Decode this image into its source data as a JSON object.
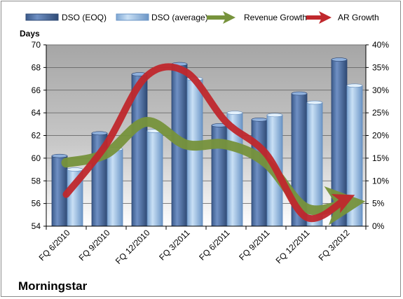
{
  "chart_data": {
    "type": "bar",
    "categories": [
      "FQ 6/2010",
      "FQ 9/2010",
      "FQ 12/2010",
      "FQ 3/2011",
      "FQ 6/2011",
      "FQ 9/2011",
      "FQ 12/2011",
      "FQ 3/2012"
    ],
    "series": [
      {
        "name": "DSO (EOQ)",
        "type": "bar",
        "axis": "left",
        "color": "#4a6fa5",
        "values": [
          60.2,
          62.2,
          67.4,
          68.3,
          62.9,
          63.4,
          65.7,
          68.7
        ]
      },
      {
        "name": "DSO (average)",
        "type": "bar",
        "axis": "left",
        "color": "#9cc3e6",
        "values": [
          59.0,
          60.8,
          62.4,
          67.0,
          64.0,
          63.8,
          64.9,
          66.4
        ]
      },
      {
        "name": "Revenue Growth",
        "type": "line",
        "axis": "right",
        "color": "#77933c",
        "values": [
          0.14,
          0.16,
          0.23,
          0.18,
          0.18,
          0.14,
          0.04,
          0.05
        ]
      },
      {
        "name": "AR Growth",
        "type": "line",
        "axis": "right",
        "color": "#c0282d",
        "values": [
          0.07,
          0.18,
          0.33,
          0.34,
          0.23,
          0.16,
          0.02,
          0.06
        ]
      }
    ],
    "yaxis_left": {
      "title": "Days",
      "min": 54,
      "max": 70,
      "ticks": [
        "54",
        "56",
        "58",
        "60",
        "62",
        "64",
        "66",
        "68",
        "70"
      ]
    },
    "yaxis_right": {
      "min": 0,
      "max": 0.4,
      "ticks": [
        "0%",
        "5%",
        "10%",
        "15%",
        "20%",
        "25%",
        "30%",
        "35%",
        "40%"
      ]
    },
    "grid": true,
    "legend_position": "top"
  },
  "brand": "Morningstar"
}
